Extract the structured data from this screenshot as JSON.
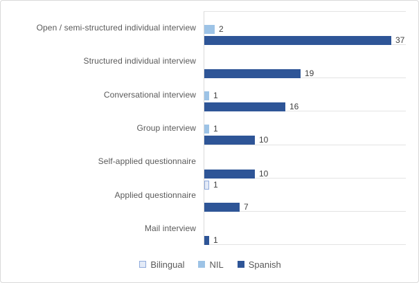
{
  "chart_data": {
    "type": "bar",
    "orientation": "horizontal",
    "title": "",
    "xlabel": "",
    "ylabel": "",
    "xlim": [
      0,
      40
    ],
    "gridlines": "category-separators",
    "data_labels": true,
    "legend_position": "bottom-center",
    "categories": [
      "Open / semi-structured individual interview",
      "Structured individual interview",
      "Conversational interview",
      "Group interview",
      "Self-applied questionnaire",
      "Applied questionnaire",
      "Mail interview"
    ],
    "series": [
      {
        "name": "Bilingual",
        "fill": "#e4ebf7",
        "border": "#8faadc",
        "values": [
          0,
          0,
          0,
          0,
          0,
          1,
          0
        ]
      },
      {
        "name": "NIL",
        "fill": "#9dc3e6",
        "border": "#9dc3e6",
        "values": [
          2,
          0,
          1,
          1,
          0,
          0,
          0
        ]
      },
      {
        "name": "Spanish",
        "fill": "#2e5597",
        "border": "#2e5597",
        "values": [
          37,
          19,
          16,
          10,
          10,
          7,
          1
        ]
      }
    ]
  },
  "styles": {
    "background": "#ffffff",
    "frame_border": "#d9d9d9",
    "grid_color": "#e3e3e3",
    "axis_color": "#d9d9d9",
    "category_label_color": "#595959",
    "value_label_color": "#404040",
    "legend_text_color": "#595959"
  }
}
